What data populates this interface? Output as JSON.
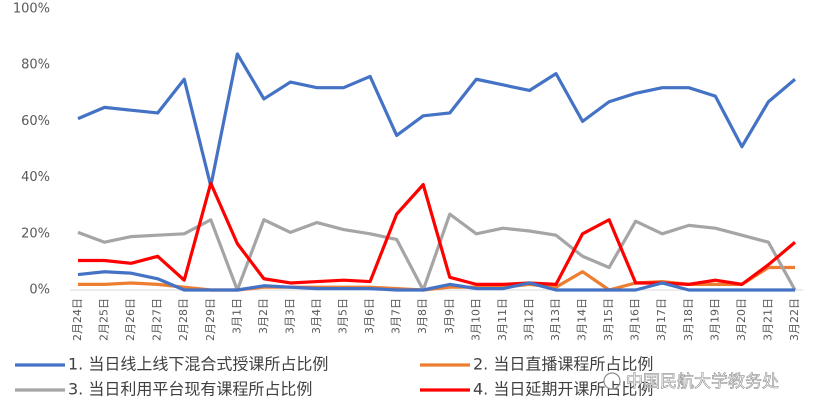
{
  "chart_data": {
    "type": "line",
    "categories": [
      "2月24日",
      "2月25日",
      "2月26日",
      "2月27日",
      "2月28日",
      "2月29日",
      "3月1日",
      "3月2日",
      "3月3日",
      "3月4日",
      "3月5日",
      "3月6日",
      "3月7日",
      "3月8日",
      "3月9日",
      "3月10日",
      "3月11日",
      "3月12日",
      "3月13日",
      "3月14日",
      "3月15日",
      "3月16日",
      "3月17日",
      "3月18日",
      "3月19日",
      "3月20日",
      "3月21日",
      "3月22日"
    ],
    "series": [
      {
        "name": "1. 当日线上线下混合式授课所占比例",
        "color": "#4472c4",
        "values": [
          61,
          65,
          64,
          63,
          75,
          37,
          84,
          68,
          74,
          72,
          72,
          76,
          55,
          62,
          63,
          75,
          73,
          71,
          77,
          60,
          67,
          70,
          72,
          72,
          69,
          51,
          67,
          75
        ]
      },
      {
        "name": "2. 当日直播课程所占比例",
        "color": "#ed7d31",
        "values": [
          2,
          2,
          2.5,
          2,
          1,
          0,
          0,
          1,
          1,
          1,
          1,
          1,
          0.5,
          0,
          1,
          1,
          1,
          2,
          1,
          6.5,
          0,
          2.5,
          3,
          2,
          2,
          2,
          8,
          8
        ]
      },
      {
        "name": "3. 当日利用平台现有课程所占比例",
        "color": "#a5a5a5",
        "values": [
          20.5,
          17,
          19,
          19.5,
          20,
          25,
          0,
          25,
          20.5,
          24,
          21.5,
          20,
          18,
          0,
          27,
          20,
          22,
          21,
          19.5,
          12,
          8,
          24.5,
          20,
          23,
          22,
          19.5,
          17,
          0
        ]
      },
      {
        "name": "4. 当日延期开课所占比例",
        "color": "#ff0000",
        "values": [
          10.5,
          10.5,
          9.5,
          12,
          3.5,
          38,
          16.5,
          4,
          2.5,
          3,
          3.5,
          3,
          27,
          37.5,
          4.5,
          2,
          2,
          2.5,
          2,
          20,
          25,
          2.5,
          2.5,
          2,
          3.5,
          2,
          9,
          17
        ]
      },
      {
        "color": "#4472c4",
        "values": [
          5.5,
          6.5,
          6,
          4,
          0,
          0,
          0,
          1.5,
          1,
          0.5,
          0.5,
          0.5,
          0,
          0,
          2,
          0.5,
          0.5,
          2.5,
          0,
          0,
          0,
          0,
          2.5,
          0,
          0,
          0,
          0,
          0
        ]
      }
    ],
    "ylim": [
      0,
      100
    ],
    "yticks": [
      {
        "value": 0,
        "label": "0%"
      },
      {
        "value": 20,
        "label": "20%"
      },
      {
        "value": 40,
        "label": "40%"
      },
      {
        "value": 60,
        "label": "60%"
      },
      {
        "value": 80,
        "label": "80%"
      },
      {
        "value": 100,
        "label": "100%"
      }
    ],
    "legend": "bottom",
    "watermark": "中国民航大学教务处"
  }
}
